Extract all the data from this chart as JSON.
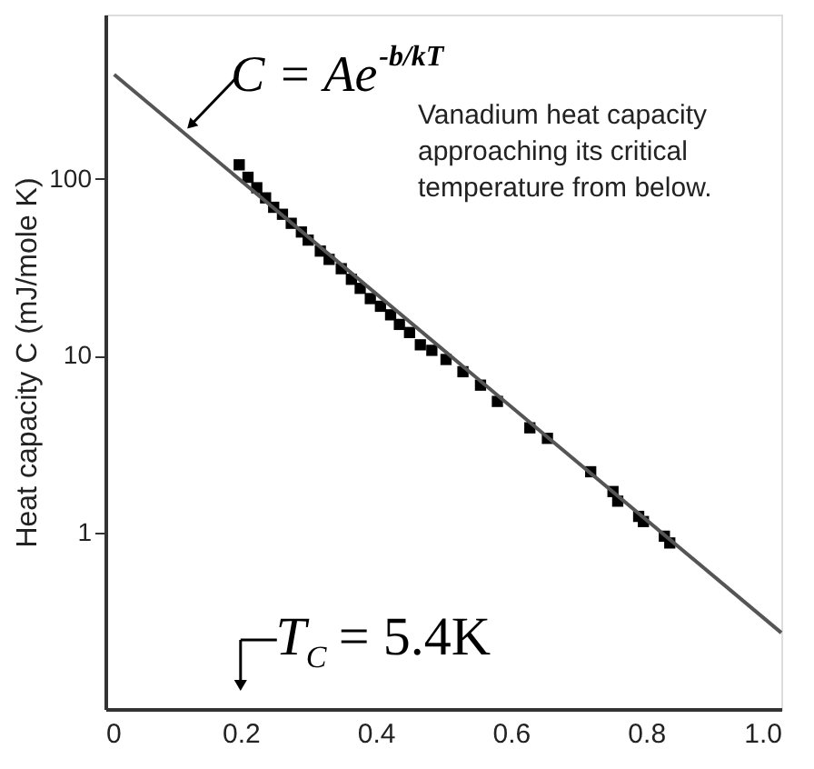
{
  "chart_data": {
    "type": "scatter",
    "ylabel": "Heat capacity C (mJ/mole K)",
    "log": "y",
    "grid": false,
    "xlim": [
      0,
      1.0
    ],
    "xticks": [
      {
        "value": 0,
        "label": "0"
      },
      0.2,
      0.4,
      0.6,
      0.8,
      {
        "value": 1.0,
        "label": "1.0"
      }
    ],
    "ylim": [
      0.1,
      850
    ],
    "yticks": [
      1,
      10,
      100
    ],
    "series": [
      {
        "marker": "square",
        "color": "#000000",
        "x": [
          0.198,
          0.211,
          0.224,
          0.237,
          0.249,
          0.262,
          0.275,
          0.29,
          0.3,
          0.318,
          0.331,
          0.349,
          0.364,
          0.377,
          0.392,
          0.407,
          0.422,
          0.435,
          0.45,
          0.466,
          0.483,
          0.504,
          0.529,
          0.555,
          0.58,
          0.628,
          0.654,
          0.718,
          0.751,
          0.758,
          0.789,
          0.796,
          0.827,
          0.835
        ],
        "values": [
          120,
          102,
          89,
          78,
          69,
          63,
          56,
          50,
          45,
          39,
          35,
          31,
          27,
          24,
          21,
          19,
          17,
          15,
          13.5,
          11.5,
          10.7,
          9.5,
          8.1,
          6.8,
          5.5,
          3.9,
          3.4,
          2.2,
          1.7,
          1.5,
          1.23,
          1.15,
          0.95,
          0.87
        ]
      },
      {
        "type": "line",
        "line_style": "solid",
        "color": "#555555",
        "x": [
          0.013,
          1.0
        ],
        "values": [
          389,
          0.27
        ]
      }
    ],
    "annotations": [
      {
        "text": "C = Ae$^{-b/kT}$",
        "x": 0.12,
        "y": 195
      },
      "Vanadium heat capacity\napproaching its critical\ntemperature from below.",
      "T$_{C}$ = 5.4K"
    ]
  }
}
